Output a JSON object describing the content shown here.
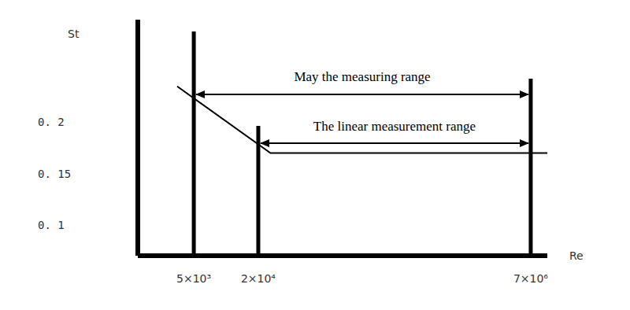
{
  "chart_data": {
    "type": "line",
    "x_label": "Re",
    "y_label": "St",
    "x": [
      3500,
      26000,
      10000000
    ],
    "values": [
      0.235,
      0.17,
      0.17
    ],
    "color": "#000000",
    "log": "x",
    "xlim": [
      1500,
      10000000
    ],
    "xticks": [
      {
        "value": 5000,
        "label": "5×10³"
      },
      {
        "value": 20000,
        "label": "2×10⁴"
      },
      {
        "value": 7000000,
        "label": "7×10⁶"
      }
    ],
    "ylim": [
      0.07,
      0.3
    ],
    "yticks": [
      {
        "value": 0.1,
        "label": "0. 1"
      },
      {
        "value": 0.15,
        "label": "0. 15"
      },
      {
        "value": 0.2,
        "label": "0. 2"
      }
    ],
    "grid": false,
    "annotations": [
      {
        "text": "May the measuring range",
        "from": 5000,
        "to": 7000000
      },
      {
        "text": "The linear measurement range",
        "from": 20000,
        "to": 7000000
      }
    ]
  }
}
